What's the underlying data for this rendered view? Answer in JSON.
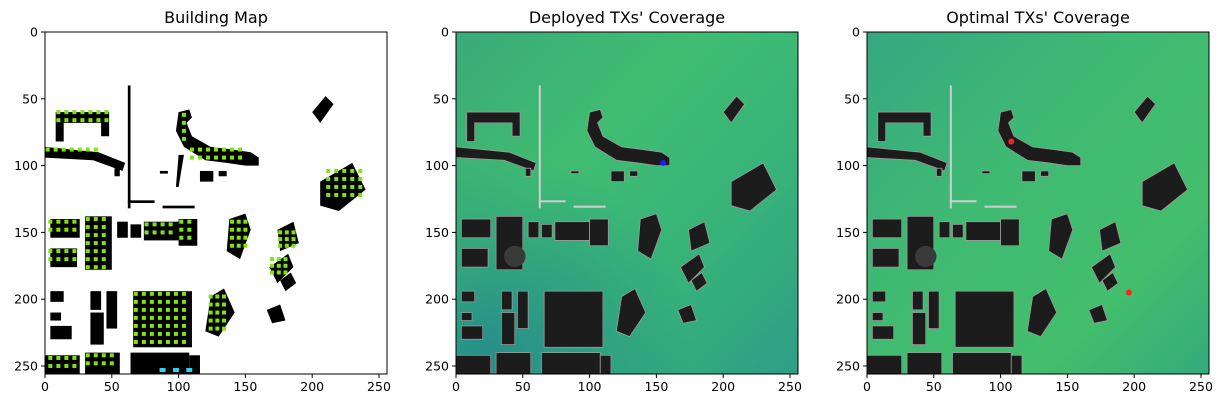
{
  "chart_data": [
    {
      "type": "heatmap",
      "title": "Building Map",
      "xlim": [
        0,
        256
      ],
      "ylim": [
        256,
        0
      ],
      "xticks": [
        0,
        50,
        100,
        150,
        200,
        250
      ],
      "yticks": [
        0,
        50,
        100,
        150,
        200,
        250
      ],
      "xtick_labels": [
        "0",
        "50",
        "100",
        "150",
        "200",
        "250"
      ],
      "ytick_labels": [
        "0",
        "50",
        "100",
        "150",
        "200",
        "250"
      ],
      "background": "#ffffff",
      "building_color": "#000000",
      "marker_color": "#7fe312",
      "highlight_color": "#2ad4f0",
      "highlight_points": [
        [
          88,
          253
        ],
        [
          98,
          253
        ],
        [
          108,
          253
        ]
      ]
    },
    {
      "type": "heatmap",
      "title": "Deployed TXs' Coverage",
      "xlim": [
        0,
        256
      ],
      "ylim": [
        256,
        0
      ],
      "xticks": [
        0,
        50,
        100,
        150,
        200,
        250
      ],
      "yticks": [
        0,
        50,
        100,
        150,
        200,
        250
      ],
      "xtick_labels": [
        "0",
        "50",
        "100",
        "150",
        "200",
        "250"
      ],
      "ytick_labels": [
        "0",
        "50",
        "100",
        "150",
        "200",
        "250"
      ],
      "colormap_low": "#2a9a8a",
      "colormap_high": "#3fc06a",
      "building_color": "#1c1c1c",
      "transmitters": [
        {
          "x": 155,
          "y": 98,
          "color": "#1a1aff"
        }
      ]
    },
    {
      "type": "heatmap",
      "title": "Optimal TXs' Coverage",
      "xlim": [
        0,
        256
      ],
      "ylim": [
        256,
        0
      ],
      "xticks": [
        0,
        50,
        100,
        150,
        200,
        250
      ],
      "yticks": [
        0,
        50,
        100,
        150,
        200,
        250
      ],
      "xtick_labels": [
        "0",
        "50",
        "100",
        "150",
        "200",
        "250"
      ],
      "ytick_labels": [
        "0",
        "50",
        "100",
        "150",
        "200",
        "250"
      ],
      "colormap_low": "#2a9a8a",
      "colormap_high": "#3fc06a",
      "building_color": "#1c1c1c",
      "transmitters": [
        {
          "x": 108,
          "y": 82,
          "color": "#ff2020"
        },
        {
          "x": 196,
          "y": 195,
          "color": "#ff2020"
        }
      ]
    }
  ]
}
